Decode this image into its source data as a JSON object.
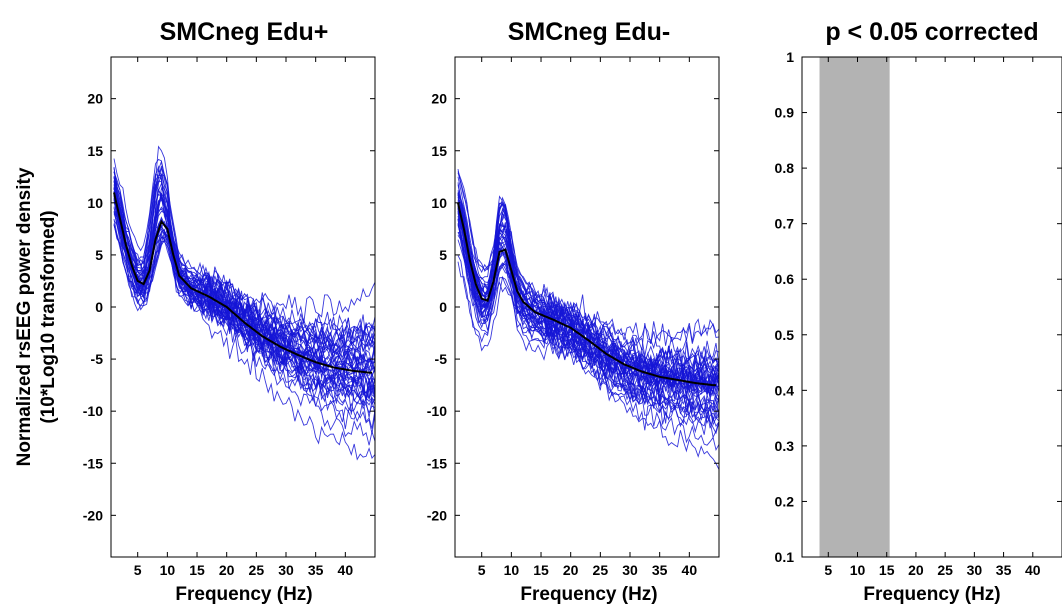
{
  "ylabel_line1": "Normalized rsEEG power density",
  "ylabel_line2": "(10*Log10 transformed)",
  "panels": [
    {
      "title": "SMCneg Edu+",
      "xlabel": "Frequency (Hz)"
    },
    {
      "title": "SMCneg Edu-",
      "xlabel": "Frequency (Hz)"
    },
    {
      "title": "p < 0.05 corrected",
      "xlabel": "Frequency (Hz)"
    }
  ],
  "chart_data": [
    {
      "type": "line",
      "title": "SMCneg Edu+",
      "xlabel": "Frequency (Hz)",
      "ylabel": "Normalized rsEEG power density (10*Log10 transformed)",
      "xlim": [
        0.5,
        45
      ],
      "ylim": [
        -24,
        24
      ],
      "xticks": [
        5,
        10,
        15,
        20,
        25,
        30,
        35,
        40
      ],
      "yticks": [
        -20,
        -15,
        -10,
        -5,
        0,
        5,
        10,
        15,
        20
      ],
      "series_color": "#1515d6",
      "mean_color": "#000000",
      "individual_subjects": 45,
      "mean": {
        "x": [
          1,
          2,
          3,
          4,
          5,
          6,
          7,
          8,
          9,
          10,
          11,
          12,
          14,
          17,
          20,
          23,
          26,
          29,
          32,
          35,
          38,
          41,
          44
        ],
        "y": [
          11,
          8.5,
          6,
          4,
          2.5,
          2.2,
          3.5,
          6.5,
          8.2,
          7.5,
          5,
          3,
          1.8,
          1,
          0,
          -1.5,
          -2.8,
          -3.8,
          -4.6,
          -5.3,
          -5.8,
          -6.1,
          -6.3
        ]
      }
    },
    {
      "type": "line",
      "title": "SMCneg Edu-",
      "xlabel": "Frequency (Hz)",
      "xlim": [
        0.5,
        45
      ],
      "ylim": [
        -24,
        24
      ],
      "xticks": [
        5,
        10,
        15,
        20,
        25,
        30,
        35,
        40
      ],
      "yticks": [
        -20,
        -15,
        -10,
        -5,
        0,
        5,
        10,
        15,
        20
      ],
      "series_color": "#1515d6",
      "mean_color": "#000000",
      "individual_subjects": 45,
      "mean": {
        "x": [
          1,
          2,
          3,
          4,
          5,
          6,
          7,
          8,
          9,
          10,
          11,
          12,
          14,
          17,
          20,
          23,
          26,
          29,
          32,
          35,
          38,
          41,
          44
        ],
        "y": [
          10,
          7.5,
          4.5,
          2.2,
          0.8,
          0.6,
          2.5,
          5.3,
          5.5,
          3.5,
          1.5,
          0.5,
          -0.5,
          -1.2,
          -2,
          -3.2,
          -4.5,
          -5.5,
          -6.2,
          -6.7,
          -7,
          -7.3,
          -7.5
        ]
      }
    },
    {
      "type": "bar",
      "title": "p < 0.05 corrected",
      "xlabel": "Frequency (Hz)",
      "xlim": [
        0.5,
        45
      ],
      "ylim": [
        0.1,
        1
      ],
      "xticks": [
        5,
        10,
        15,
        20,
        25,
        30,
        35,
        40
      ],
      "yticks": [
        0.1,
        0.2,
        0.3,
        0.4,
        0.5,
        0.6,
        0.7,
        0.8,
        0.9,
        1
      ],
      "significant_band": {
        "x_start": 3.5,
        "x_end": 15.5,
        "value": 1,
        "color": "#b3b3b3"
      }
    }
  ]
}
